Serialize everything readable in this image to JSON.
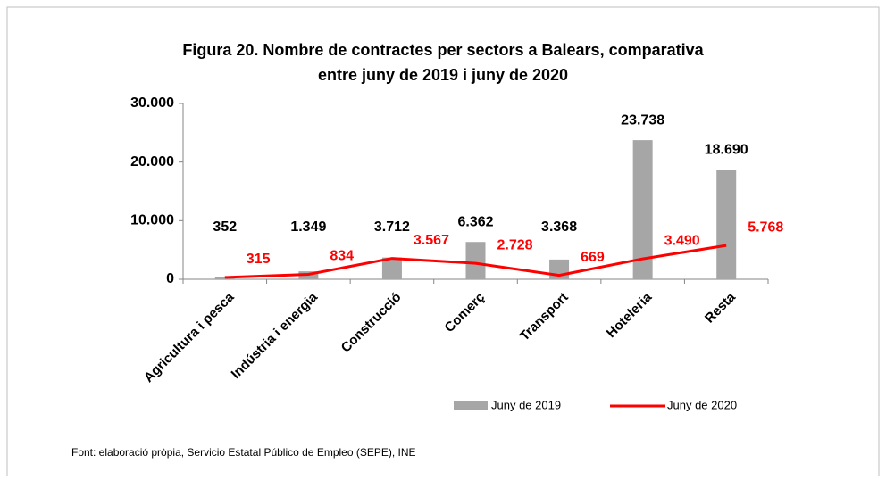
{
  "chart_data": {
    "type": "bar_line",
    "title": [
      "Figura 20. Nombre de contractes per sectors a Balears, comparativa",
      "entre juny de 2019 i juny de 2020"
    ],
    "categories": [
      "Agricultura i pesca",
      "Indústria i energia",
      "Construcció",
      "Comerç",
      "Transport",
      "Hoteleria",
      "Resta"
    ],
    "series": [
      {
        "name": "Juny de 2019",
        "type": "bar",
        "color": "#a6a6a6",
        "values": [
          352,
          1349,
          3712,
          6362,
          3368,
          23738,
          18690
        ],
        "value_labels": [
          "352",
          "1.349",
          "3.712",
          "6.362",
          "3.368",
          "23.738",
          "18.690"
        ]
      },
      {
        "name": "Juny de 2020",
        "type": "line",
        "color": "#ff0000",
        "values": [
          315,
          834,
          3567,
          2728,
          669,
          3490,
          5768
        ],
        "value_labels": [
          "315",
          "834",
          "3.567",
          "2.728",
          "669",
          "3.490",
          "5.768"
        ]
      }
    ],
    "ylim": [
      0,
      30000
    ],
    "yticks": [
      0,
      {
        "value": 10000,
        "label": "10.000"
      },
      {
        "value": 20000,
        "label": "20.000"
      },
      {
        "value": 30000,
        "label": "30.000"
      }
    ],
    "legend": "bottom",
    "source": "Font: elaboració pròpia, Servicio Estatal Público de Empleo (SEPE), INE"
  }
}
